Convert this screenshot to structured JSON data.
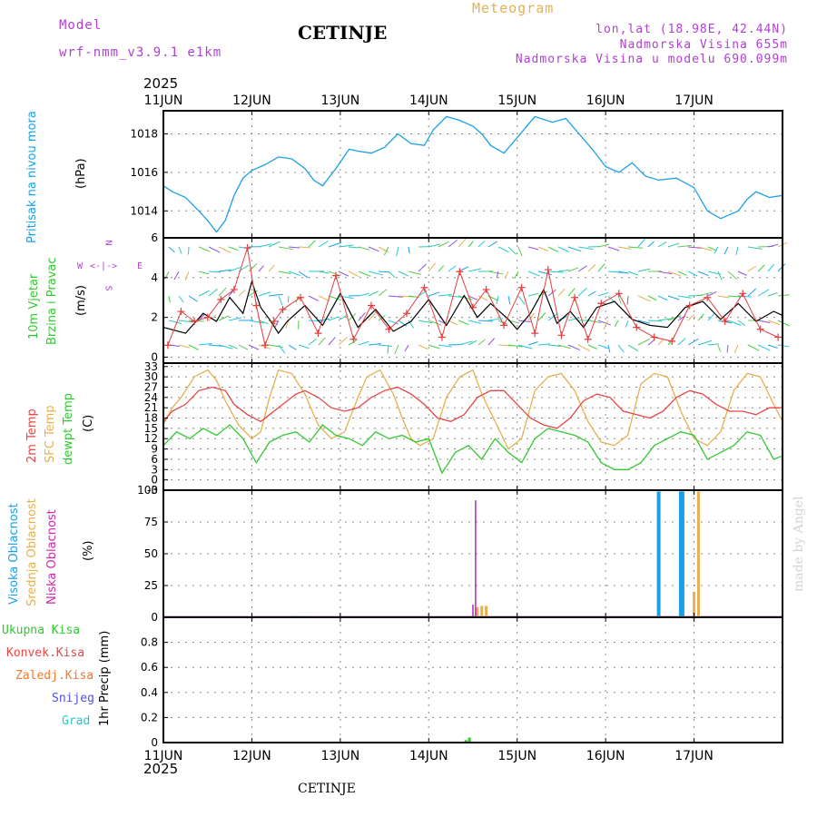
{
  "header": {
    "model_label": "Model",
    "model_name": "wrf-nmm_v3.9.1  e1km",
    "title": "CETINJE",
    "meteogram": "Meteogram",
    "lonlat": "lon,lat (18.98E, 42.44N)",
    "elevation": "Nadmorska Visina 655m",
    "model_elevation": "Nadmorska Visina u modelu 690.099m",
    "year_top": "2025",
    "year_bottom": "2025",
    "footer": "CETINJE",
    "credit": "made by Angel"
  },
  "colors": {
    "pressure": "#1ba0e6",
    "wind_speed": "#000000",
    "gust": "#e63c3c",
    "temp2m": "#e64646",
    "sfc": "#e6b050",
    "dewpt": "#32c832",
    "high_cloud": "#1ba0e6",
    "mid_cloud": "#e6b050",
    "low_cloud": "#b428b4",
    "precip_total": "#32c832",
    "precip_conv": "#e64646",
    "precip_strat": "#f07830",
    "snow": "#5050e6",
    "grad": "#28c8c8",
    "purple_text": "#b040d0",
    "orange_text": "#e6b050"
  },
  "chart_data": [
    {
      "type": "line",
      "panel": "pressure",
      "title": "",
      "side_labels": [
        "Pritisak na nivou mora",
        "(hPa)"
      ],
      "x_days": [
        "11JUN",
        "12JUN",
        "13JUN",
        "14JUN",
        "15JUN",
        "16JUN",
        "17JUN"
      ],
      "ylim": [
        1012.6,
        1019.2
      ],
      "yticks": [
        1014,
        1016,
        1018
      ],
      "grid": true,
      "series": [
        {
          "x": [
            0,
            0.1,
            0.25,
            0.4,
            0.5,
            0.6,
            0.7,
            0.8,
            0.9,
            1.0,
            1.15,
            1.3,
            1.45,
            1.6,
            1.7,
            1.8,
            1.95,
            2.1,
            2.2,
            2.35,
            2.5,
            2.65,
            2.8,
            2.95,
            3.05,
            3.2,
            3.35,
            3.5,
            3.6,
            3.7,
            3.85,
            4.0,
            4.2,
            4.4,
            4.55,
            4.7,
            4.85,
            5.0,
            5.15,
            5.3,
            5.45,
            5.6,
            5.8,
            6.0,
            6.15,
            6.3,
            6.5,
            6.6,
            6.7,
            6.85,
            7.0
          ],
          "values": [
            1015.3,
            1015.0,
            1014.7,
            1014.0,
            1013.5,
            1012.9,
            1013.5,
            1014.8,
            1015.7,
            1016.1,
            1016.4,
            1016.8,
            1016.7,
            1016.2,
            1015.6,
            1015.3,
            1016.2,
            1017.2,
            1017.1,
            1017.0,
            1017.3,
            1018.0,
            1017.5,
            1017.4,
            1018.2,
            1018.9,
            1018.7,
            1018.4,
            1018.0,
            1017.4,
            1017.0,
            1017.8,
            1018.9,
            1018.6,
            1018.8,
            1018.0,
            1017.2,
            1016.3,
            1016.0,
            1016.5,
            1015.8,
            1015.6,
            1015.7,
            1015.2,
            1014.0,
            1013.6,
            1014.0,
            1014.6,
            1015.0,
            1014.7,
            1014.8
          ]
        }
      ]
    },
    {
      "type": "line",
      "panel": "wind",
      "title": "",
      "side_labels": [
        "10m Vjetar",
        "Brzina i Pravac",
        "(m/s)"
      ],
      "compass": {
        "w": "W",
        "e": "E",
        "n": "N",
        "s": "S"
      },
      "x_days": [
        "11JUN",
        "12JUN",
        "13JUN",
        "14JUN",
        "15JUN",
        "16JUN",
        "17JUN"
      ],
      "ylim": [
        -0.3,
        6
      ],
      "yticks": [
        0,
        2,
        4,
        6
      ],
      "grid": true,
      "series": [
        {
          "x": [
            0,
            0.25,
            0.45,
            0.6,
            0.75,
            0.9,
            1.0,
            1.1,
            1.2,
            1.3,
            1.4,
            1.6,
            1.8,
            2.0,
            2.2,
            2.4,
            2.6,
            2.8,
            3.0,
            3.2,
            3.4,
            3.55,
            3.7,
            3.9,
            4.0,
            4.15,
            4.3,
            4.45,
            4.6,
            4.75,
            4.9,
            5.1,
            5.3,
            5.5,
            5.7,
            5.9,
            6.1,
            6.3,
            6.5,
            6.7,
            6.9,
            7.0
          ],
          "values": [
            1.5,
            1.2,
            2.2,
            1.8,
            3.0,
            2.2,
            3.8,
            2.5,
            1.9,
            1.2,
            1.8,
            2.6,
            1.6,
            3.2,
            1.5,
            2.4,
            1.3,
            1.8,
            2.9,
            1.6,
            3.1,
            2.0,
            2.7,
            1.9,
            1.4,
            2.2,
            3.4,
            1.7,
            2.3,
            1.5,
            2.5,
            2.8,
            1.9,
            1.6,
            1.5,
            2.5,
            2.8,
            1.9,
            2.7,
            1.8,
            2.3,
            2.1
          ]
        },
        {
          "x": [
            0.05,
            0.2,
            0.35,
            0.5,
            0.65,
            0.8,
            0.95,
            1.05,
            1.15,
            1.25,
            1.35,
            1.55,
            1.75,
            1.95,
            2.15,
            2.35,
            2.55,
            2.75,
            2.95,
            3.15,
            3.35,
            3.5,
            3.65,
            3.85,
            4.05,
            4.2,
            4.35,
            4.5,
            4.65,
            4.8,
            4.95,
            5.15,
            5.35,
            5.55,
            5.75,
            5.95,
            6.15,
            6.35,
            6.55,
            6.75,
            6.95
          ],
          "values": [
            0.6,
            2.3,
            1.8,
            2.0,
            2.9,
            3.4,
            5.5,
            2.6,
            0.6,
            1.8,
            2.4,
            3.0,
            1.2,
            4.1,
            0.9,
            2.6,
            1.4,
            2.2,
            3.5,
            1.0,
            4.3,
            2.5,
            3.4,
            1.6,
            3.5,
            1.2,
            4.4,
            1.1,
            3.0,
            0.9,
            2.7,
            3.2,
            1.5,
            1.0,
            0.8,
            2.6,
            3.0,
            1.8,
            3.2,
            1.4,
            1.0
          ]
        }
      ]
    },
    {
      "type": "line",
      "panel": "temperature",
      "title": "",
      "side_labels": [
        "2m Temp",
        "SFC Temp",
        "dewpt Temp",
        "(C)"
      ],
      "x_days": [
        "11JUN",
        "12JUN",
        "13JUN",
        "14JUN",
        "15JUN",
        "16JUN",
        "17JUN"
      ],
      "ylim": [
        -3,
        34
      ],
      "yticks": [
        -3,
        0,
        3,
        6,
        9,
        12,
        15,
        18,
        21,
        24,
        27,
        30,
        33
      ],
      "ytick_labels": [
        "-3",
        "0",
        "3",
        "6",
        "9",
        "12",
        "15",
        "18",
        "21",
        "24",
        "27",
        "30",
        "33"
      ],
      "grid": true,
      "series": [
        {
          "name": "2m Temp",
          "x": [
            0,
            0.1,
            0.25,
            0.4,
            0.55,
            0.7,
            0.8,
            0.95,
            1.1,
            1.2,
            1.35,
            1.5,
            1.6,
            1.75,
            1.9,
            2.05,
            2.2,
            2.35,
            2.5,
            2.65,
            2.8,
            2.95,
            3.1,
            3.25,
            3.4,
            3.55,
            3.7,
            3.85,
            4.0,
            4.15,
            4.3,
            4.45,
            4.6,
            4.75,
            4.9,
            5.05,
            5.2,
            5.35,
            5.5,
            5.65,
            5.8,
            5.95,
            6.1,
            6.25,
            6.4,
            6.55,
            6.7,
            6.85,
            7.0
          ],
          "values": [
            17,
            20,
            22,
            26,
            27,
            26,
            22,
            19,
            17,
            19,
            22,
            25,
            26,
            24,
            21,
            20,
            21,
            24,
            26,
            27,
            25,
            22,
            18,
            17,
            19,
            24,
            26,
            26,
            22,
            18,
            16,
            15,
            18,
            23,
            25,
            24,
            20,
            19,
            18,
            20,
            24,
            26,
            25,
            22,
            20,
            20,
            19,
            21,
            21
          ]
        },
        {
          "name": "SFC Temp",
          "x": [
            0,
            0.1,
            0.2,
            0.35,
            0.5,
            0.6,
            0.7,
            0.85,
            1.0,
            1.1,
            1.2,
            1.3,
            1.45,
            1.6,
            1.75,
            1.9,
            2.05,
            2.2,
            2.3,
            2.45,
            2.6,
            2.7,
            2.8,
            2.9,
            3.05,
            3.2,
            3.35,
            3.5,
            3.6,
            3.75,
            3.9,
            4.05,
            4.2,
            4.35,
            4.5,
            4.65,
            4.8,
            4.95,
            5.1,
            5.25,
            5.4,
            5.55,
            5.7,
            5.85,
            6.0,
            6.15,
            6.3,
            6.45,
            6.6,
            6.75,
            6.9,
            7.0
          ],
          "values": [
            16,
            21,
            24,
            30,
            32,
            29,
            23,
            16,
            12,
            14,
            24,
            32,
            31,
            25,
            16,
            12,
            14,
            24,
            30,
            32,
            25,
            18,
            12,
            10,
            12,
            24,
            30,
            32,
            25,
            17,
            9,
            12,
            26,
            30,
            31,
            26,
            17,
            11,
            10,
            13,
            28,
            31,
            30,
            20,
            12,
            10,
            14,
            26,
            31,
            30,
            22,
            17
          ]
        },
        {
          "name": "dewpt Temp",
          "x": [
            0,
            0.15,
            0.3,
            0.45,
            0.6,
            0.75,
            0.9,
            1.05,
            1.2,
            1.35,
            1.5,
            1.65,
            1.8,
            1.95,
            2.1,
            2.25,
            2.4,
            2.55,
            2.7,
            2.85,
            3.0,
            3.15,
            3.3,
            3.45,
            3.6,
            3.75,
            3.9,
            4.05,
            4.2,
            4.35,
            4.5,
            4.65,
            4.8,
            4.95,
            5.1,
            5.25,
            5.4,
            5.55,
            5.7,
            5.85,
            6.0,
            6.15,
            6.3,
            6.45,
            6.6,
            6.75,
            6.9,
            7.0
          ],
          "values": [
            10,
            14,
            12,
            15,
            13,
            16,
            12,
            5,
            11,
            13,
            14,
            11,
            16,
            13,
            12,
            10,
            14,
            12,
            13,
            11,
            12,
            2,
            8,
            10,
            6,
            12,
            8,
            5,
            12,
            15,
            14,
            13,
            11,
            5,
            3,
            3,
            5,
            10,
            12,
            14,
            13,
            6,
            8,
            10,
            14,
            13,
            6,
            7
          ]
        }
      ]
    },
    {
      "type": "bar",
      "panel": "clouds",
      "title": "",
      "side_labels": [
        "Visoka Oblacnost",
        "Srednja Oblacnost",
        "Niska Oblacnost",
        "(%)"
      ],
      "x_days": [
        "11JUN",
        "12JUN",
        "13JUN",
        "14JUN",
        "15JUN",
        "16JUN",
        "17JUN"
      ],
      "ylim": [
        0,
        100
      ],
      "yticks": [
        0,
        25,
        50,
        75,
        100
      ],
      "grid": true,
      "series": [
        {
          "name": "Visoka Oblacnost",
          "x": [
            1.5,
            1.6,
            5.6,
            5.85,
            5.87
          ],
          "values": [
            1,
            1,
            99,
            99,
            99
          ]
        },
        {
          "name": "Srednja Oblacnost",
          "x": [
            3.55,
            3.6,
            3.65,
            6.0,
            6.05
          ],
          "values": [
            8,
            9,
            9,
            20,
            99
          ]
        },
        {
          "name": "Niska Oblacnost",
          "x": [
            3.5,
            3.53
          ],
          "values": [
            10,
            92
          ]
        }
      ]
    },
    {
      "type": "bar",
      "panel": "precip",
      "title": "",
      "side_labels": [
        "1hr Precip (mm)"
      ],
      "legend": [
        "Ukupna Kisa",
        "Konvek.Kisa",
        "Zaledj.Kisa",
        "Snijeg",
        "Grad"
      ],
      "x_days": [
        "11JUN",
        "12JUN",
        "13JUN",
        "14JUN",
        "15JUN",
        "16JUN",
        "17JUN"
      ],
      "ylim": [
        0,
        1
      ],
      "yticks": [
        0,
        0.2,
        0.4,
        0.6,
        0.8
      ],
      "ytick_labels": [
        "0",
        "0.2",
        "0.4",
        "0.6",
        "0.8"
      ],
      "grid": true,
      "series": [
        {
          "name": "Ukupna Kisa",
          "x": [
            3.42,
            3.46
          ],
          "values": [
            0.02,
            0.04
          ]
        }
      ]
    }
  ]
}
